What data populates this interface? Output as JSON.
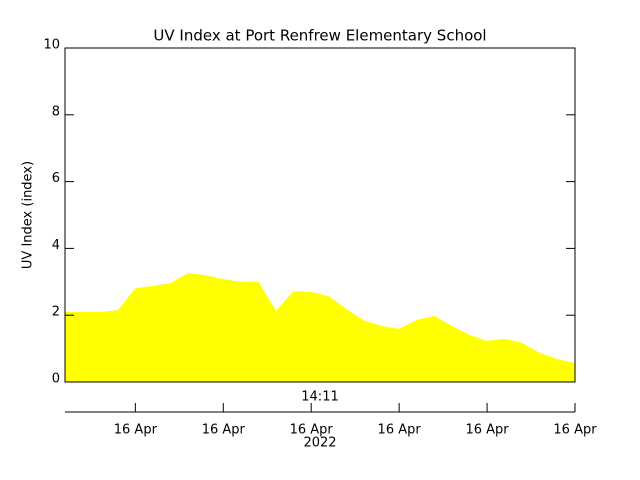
{
  "chart_data": {
    "type": "area",
    "title": "UV Index at Port Renfrew Elementary School",
    "ylabel": "UV Index (index)",
    "annotation": "14:11",
    "xlabel": "2022",
    "color": "#ffff00",
    "x": [
      0,
      1,
      2,
      3,
      4,
      5,
      6,
      7,
      8,
      9,
      10,
      11,
      12,
      13,
      14,
      15,
      16,
      17,
      18,
      19,
      20,
      21,
      22,
      23,
      24,
      25,
      26,
      27,
      28,
      29
    ],
    "values": [
      2.1,
      2.1,
      2.1,
      2.15,
      2.8,
      2.88,
      2.96,
      3.26,
      3.2,
      3.08,
      3.0,
      3.0,
      2.13,
      2.72,
      2.7,
      2.57,
      2.19,
      1.84,
      1.68,
      1.59,
      1.86,
      1.98,
      1.68,
      1.41,
      1.23,
      1.29,
      1.17,
      0.87,
      0.69,
      0.57
    ],
    "xlim": [
      0,
      29
    ],
    "xticks": [
      {
        "value": 4,
        "label": "16 Apr"
      },
      {
        "value": 9,
        "label": "16 Apr"
      },
      {
        "value": 14,
        "label": "16 Apr"
      },
      {
        "value": 19,
        "label": "16 Apr"
      },
      {
        "value": 24,
        "label": "16 Apr"
      },
      {
        "value": 29,
        "label": "16 Apr"
      }
    ],
    "ylim": [
      0,
      10
    ],
    "yticks": [
      0,
      2,
      4,
      6,
      8,
      10
    ]
  }
}
